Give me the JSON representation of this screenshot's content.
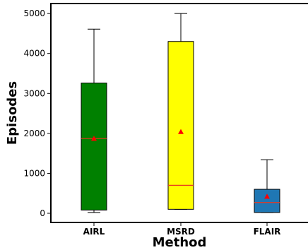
{
  "chart_data": {
    "type": "box",
    "title": "",
    "xlabel": "Method",
    "ylabel": "Episodes",
    "categories": [
      "AIRL",
      "MSRD",
      "FLAIR"
    ],
    "ylim": [
      -230,
      5250
    ],
    "yticks": [
      0,
      1000,
      2000,
      3000,
      4000,
      5000
    ],
    "boxes": [
      {
        "name": "AIRL",
        "whisker_low": 20,
        "q1": 80,
        "median": 1870,
        "q3": 3260,
        "whisker_high": 4610,
        "mean": 1870,
        "color": "#008000"
      },
      {
        "name": "MSRD",
        "whisker_low": 100,
        "q1": 100,
        "median": 700,
        "q3": 4300,
        "whisker_high": 5000,
        "mean": 2040,
        "color": "#ffff00"
      },
      {
        "name": "FLAIR",
        "whisker_low": 20,
        "q1": 20,
        "median": 270,
        "q3": 600,
        "whisker_high": 1340,
        "mean": 420,
        "color": "#1f77b4"
      }
    ],
    "median_color": "#e8371f",
    "mean_marker_color": "#ff0000",
    "mean_marker": "triangle",
    "grid": false
  }
}
